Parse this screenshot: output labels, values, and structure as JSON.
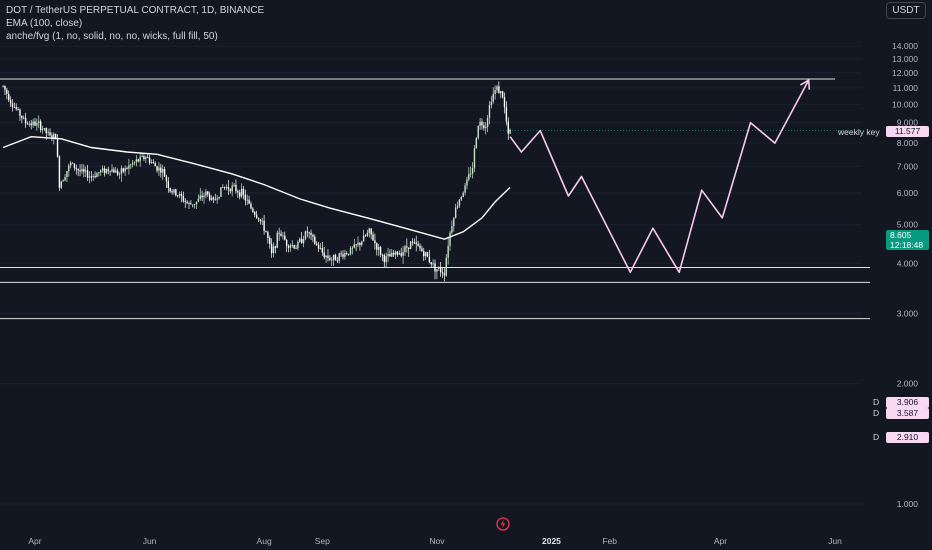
{
  "legend": {
    "symbol": "DOT / TetherUS PERPETUAL CONTRACT, 1D, BINANCE",
    "indicator1": "EMA (100, close)",
    "indicator2": "anche/fvg (1, no, solid, no, no, wicks, full fill, 50)"
  },
  "currency_button": "USDT",
  "last_price": {
    "value": "8.605",
    "countdown": "12:18:48"
  },
  "weekly_key": {
    "label": "weekly key",
    "value": "11.577"
  },
  "levels": [
    {
      "letter": "D",
      "value": "3.906"
    },
    {
      "letter": "D",
      "value": "3.587"
    },
    {
      "letter": "D",
      "value": "2.910"
    }
  ],
  "colors": {
    "background": "#131722",
    "up_candle": "#c8e6c9",
    "down_candle": "#ffffff",
    "ema": "#ffffff",
    "projection": "#f7c8f0",
    "last_price": "#089981",
    "level_line": "#e0e0e0",
    "level_tag": "#f7d9f4"
  },
  "icons": {
    "bottom": "tradingview-logo-icon"
  },
  "chart_data": {
    "type": "candlestick",
    "title": "DOT / TetherUS PERPETUAL CONTRACT, 1D, BINANCE",
    "y_axis": {
      "ticks": [
        "1.000",
        "2.000",
        "3.000",
        "4.000",
        "5.000",
        "6.000",
        "7.000",
        "8.000",
        "9.000",
        "10.000",
        "11.000",
        "12.000",
        "13.000",
        "14.000"
      ],
      "range": [
        0.6,
        15.0
      ]
    },
    "x_axis": {
      "ticks": [
        "Apr",
        "Jun",
        "Aug",
        "Sep",
        "Nov",
        "2025",
        "Feb",
        "Apr",
        "Jun"
      ],
      "bold_ticks": [
        "2025"
      ]
    },
    "close_path": [
      [
        "2024-03-15",
        11.1
      ],
      [
        "2024-03-20",
        10.0
      ],
      [
        "2024-03-27",
        9.0
      ],
      [
        "2024-04-03",
        8.9
      ],
      [
        "2024-04-09",
        8.3
      ],
      [
        "2024-04-12",
        8.3
      ],
      [
        "2024-04-14",
        6.3
      ],
      [
        "2024-04-20",
        7.1
      ],
      [
        "2024-04-25",
        6.8
      ],
      [
        "2024-05-01",
        6.6
      ],
      [
        "2024-05-06",
        6.8
      ],
      [
        "2024-05-11",
        6.9
      ],
      [
        "2024-05-16",
        6.7
      ],
      [
        "2024-05-21",
        7.0
      ],
      [
        "2024-05-25",
        7.2
      ],
      [
        "2024-05-30",
        7.4
      ],
      [
        "2024-06-04",
        7.0
      ],
      [
        "2024-06-08",
        6.8
      ],
      [
        "2024-06-12",
        6.1
      ],
      [
        "2024-06-17",
        5.9
      ],
      [
        "2024-06-22",
        5.6
      ],
      [
        "2024-06-26",
        5.7
      ],
      [
        "2024-07-01",
        6.0
      ],
      [
        "2024-07-05",
        5.7
      ],
      [
        "2024-07-10",
        6.2
      ],
      [
        "2024-07-15",
        6.2
      ],
      [
        "2024-07-20",
        6.0
      ],
      [
        "2024-07-25",
        5.5
      ],
      [
        "2024-07-29",
        5.2
      ],
      [
        "2024-08-02",
        4.8
      ],
      [
        "2024-08-05",
        4.2
      ],
      [
        "2024-08-09",
        4.8
      ],
      [
        "2024-08-13",
        4.5
      ],
      [
        "2024-08-18",
        4.4
      ],
      [
        "2024-08-24",
        4.8
      ],
      [
        "2024-08-28",
        4.5
      ],
      [
        "2024-09-02",
        4.2
      ],
      [
        "2024-09-06",
        4.1
      ],
      [
        "2024-09-11",
        4.2
      ],
      [
        "2024-09-16",
        4.3
      ],
      [
        "2024-09-21",
        4.5
      ],
      [
        "2024-09-26",
        4.8
      ],
      [
        "2024-09-30",
        4.4
      ],
      [
        "2024-10-04",
        4.1
      ],
      [
        "2024-10-09",
        4.2
      ],
      [
        "2024-10-14",
        4.3
      ],
      [
        "2024-10-18",
        4.5
      ],
      [
        "2024-10-22",
        4.4
      ],
      [
        "2024-10-26",
        4.2
      ],
      [
        "2024-10-31",
        3.9
      ],
      [
        "2024-11-05",
        3.8
      ],
      [
        "2024-11-07",
        4.5
      ],
      [
        "2024-11-10",
        5.3
      ],
      [
        "2024-11-13",
        5.8
      ],
      [
        "2024-11-16",
        6.2
      ],
      [
        "2024-11-20",
        7.0
      ],
      [
        "2024-11-23",
        9.0
      ],
      [
        "2024-11-27",
        8.9
      ],
      [
        "2024-11-30",
        10.4
      ],
      [
        "2024-12-03",
        11.0
      ],
      [
        "2024-12-06",
        10.5
      ],
      [
        "2024-12-09",
        8.3
      ],
      [
        "2024-12-10",
        8.6
      ]
    ],
    "ema100": [
      [
        "2024-03-15",
        7.8
      ],
      [
        "2024-03-30",
        8.3
      ],
      [
        "2024-04-15",
        8.2
      ],
      [
        "2024-05-01",
        7.8
      ],
      [
        "2024-05-20",
        7.6
      ],
      [
        "2024-06-05",
        7.5
      ],
      [
        "2024-06-25",
        7.1
      ],
      [
        "2024-07-15",
        6.7
      ],
      [
        "2024-08-01",
        6.3
      ],
      [
        "2024-08-20",
        5.8
      ],
      [
        "2024-09-05",
        5.5
      ],
      [
        "2024-09-25",
        5.2
      ],
      [
        "2024-10-15",
        4.9
      ],
      [
        "2024-11-05",
        4.6
      ],
      [
        "2024-11-15",
        4.8
      ],
      [
        "2024-11-25",
        5.2
      ],
      [
        "2024-12-02",
        5.7
      ],
      [
        "2024-12-10",
        6.2
      ]
    ],
    "projection": [
      [
        "2024-12-10",
        8.3
      ],
      [
        "2024-12-16",
        7.6
      ],
      [
        "2024-12-26",
        8.6
      ],
      [
        "2025-01-10",
        5.9
      ],
      [
        "2025-01-17",
        6.6
      ],
      [
        "2025-02-12",
        3.8
      ],
      [
        "2025-02-24",
        4.9
      ],
      [
        "2025-03-10",
        3.8
      ],
      [
        "2025-03-22",
        6.1
      ],
      [
        "2025-04-02",
        5.2
      ],
      [
        "2025-04-17",
        9.0
      ],
      [
        "2025-04-30",
        8.0
      ],
      [
        "2025-05-18",
        11.5
      ]
    ],
    "horizontal_levels": [
      {
        "label": "weekly key",
        "value": 11.577
      },
      {
        "label": "D",
        "value": 3.906
      },
      {
        "label": "D",
        "value": 3.587
      },
      {
        "label": "D",
        "value": 2.91
      }
    ],
    "last_price": 8.605
  }
}
